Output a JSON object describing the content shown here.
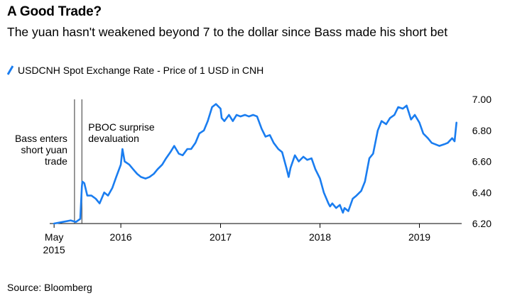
{
  "header": {
    "title": "A Good Trade?",
    "subtitle": "The yuan hasn't weakened beyond 7 to the dollar since Bass made his short bet"
  },
  "source": "Source: Bloomberg",
  "chart_data": {
    "type": "line",
    "title": "A Good Trade?",
    "subtitle": "The yuan hasn't weakened beyond 7 to the dollar since Bass made his short bet",
    "series": [
      {
        "name": "USDCNH Spot Exchange Rate - Price of 1 USD in CNH",
        "color": "#1a7df0",
        "x": [
          "2015-05",
          "2015-06",
          "2015-07",
          "2015-07-20",
          "2015-08-05",
          "2015-08-11",
          "2015-08-13",
          "2015-08-20",
          "2015-08-31",
          "2015-09-15",
          "2015-10-01",
          "2015-10-15",
          "2015-11-01",
          "2015-11-15",
          "2015-12-01",
          "2015-12-15",
          "2016-01-01",
          "2016-01-07",
          "2016-01-15",
          "2016-02-01",
          "2016-02-15",
          "2016-03-01",
          "2016-03-15",
          "2016-04-01",
          "2016-04-15",
          "2016-05-01",
          "2016-05-15",
          "2016-06-01",
          "2016-06-15",
          "2016-07-01",
          "2016-07-15",
          "2016-08-01",
          "2016-08-15",
          "2016-09-01",
          "2016-09-15",
          "2016-10-01",
          "2016-10-15",
          "2016-11-01",
          "2016-11-15",
          "2016-12-01",
          "2016-12-15",
          "2017-01-01",
          "2017-01-05",
          "2017-01-15",
          "2017-02-01",
          "2017-02-15",
          "2017-03-01",
          "2017-03-15",
          "2017-04-01",
          "2017-04-15",
          "2017-05-01",
          "2017-05-15",
          "2017-06-01",
          "2017-06-15",
          "2017-07-01",
          "2017-07-15",
          "2017-08-01",
          "2017-08-15",
          "2017-09-01",
          "2017-09-08",
          "2017-09-15",
          "2017-10-01",
          "2017-10-15",
          "2017-11-01",
          "2017-11-15",
          "2017-12-01",
          "2017-12-15",
          "2018-01-01",
          "2018-01-15",
          "2018-02-01",
          "2018-02-07",
          "2018-02-15",
          "2018-03-01",
          "2018-03-15",
          "2018-03-26",
          "2018-04-01",
          "2018-04-15",
          "2018-05-01",
          "2018-05-15",
          "2018-06-01",
          "2018-06-15",
          "2018-07-01",
          "2018-07-15",
          "2018-08-01",
          "2018-08-15",
          "2018-09-01",
          "2018-09-15",
          "2018-10-01",
          "2018-10-15",
          "2018-11-01",
          "2018-11-15",
          "2018-12-01",
          "2018-12-15",
          "2019-01-01",
          "2019-01-15",
          "2019-02-01",
          "2019-02-15",
          "2019-03-01",
          "2019-03-15",
          "2019-04-01",
          "2019-04-15",
          "2019-05-01",
          "2019-05-10",
          "2019-05-17"
        ],
        "y": [
          6.2,
          6.21,
          6.22,
          6.21,
          6.23,
          6.44,
          6.47,
          6.46,
          6.38,
          6.38,
          6.36,
          6.33,
          6.4,
          6.38,
          6.43,
          6.5,
          6.58,
          6.68,
          6.6,
          6.58,
          6.55,
          6.52,
          6.5,
          6.49,
          6.5,
          6.52,
          6.55,
          6.58,
          6.62,
          6.66,
          6.7,
          6.65,
          6.64,
          6.68,
          6.68,
          6.72,
          6.78,
          6.8,
          6.86,
          6.95,
          6.97,
          6.94,
          6.88,
          6.86,
          6.9,
          6.86,
          6.9,
          6.89,
          6.9,
          6.89,
          6.9,
          6.89,
          6.81,
          6.76,
          6.77,
          6.72,
          6.68,
          6.66,
          6.55,
          6.5,
          6.56,
          6.64,
          6.6,
          6.63,
          6.61,
          6.62,
          6.55,
          6.49,
          6.4,
          6.33,
          6.31,
          6.33,
          6.3,
          6.32,
          6.27,
          6.3,
          6.28,
          6.36,
          6.38,
          6.41,
          6.47,
          6.62,
          6.65,
          6.8,
          6.86,
          6.84,
          6.88,
          6.9,
          6.95,
          6.94,
          6.96,
          6.87,
          6.9,
          6.85,
          6.78,
          6.75,
          6.72,
          6.71,
          6.7,
          6.71,
          6.72,
          6.75,
          6.73,
          6.85
        ]
      }
    ],
    "x_ticks": [
      {
        "x": "2015-05",
        "label": "May\n2015"
      },
      {
        "x": "2016-01",
        "label": "2016"
      },
      {
        "x": "2017-01",
        "label": "2017"
      },
      {
        "x": "2018-01",
        "label": "2018"
      },
      {
        "x": "2019-01",
        "label": "2019"
      }
    ],
    "y_ticks": [
      6.2,
      6.4,
      6.6,
      6.8,
      7.0
    ],
    "ylim": [
      6.2,
      7.0
    ],
    "xlim": [
      "2015-04-15",
      "2019-06-05"
    ],
    "grid": false,
    "legend": "top-left",
    "annotations": [
      {
        "x": "2015-07-15",
        "text": "Bass enters\nshort yuan\ntrade"
      },
      {
        "x": "2015-08-11",
        "text": "PBOC surprise\ndevaluation"
      }
    ]
  }
}
